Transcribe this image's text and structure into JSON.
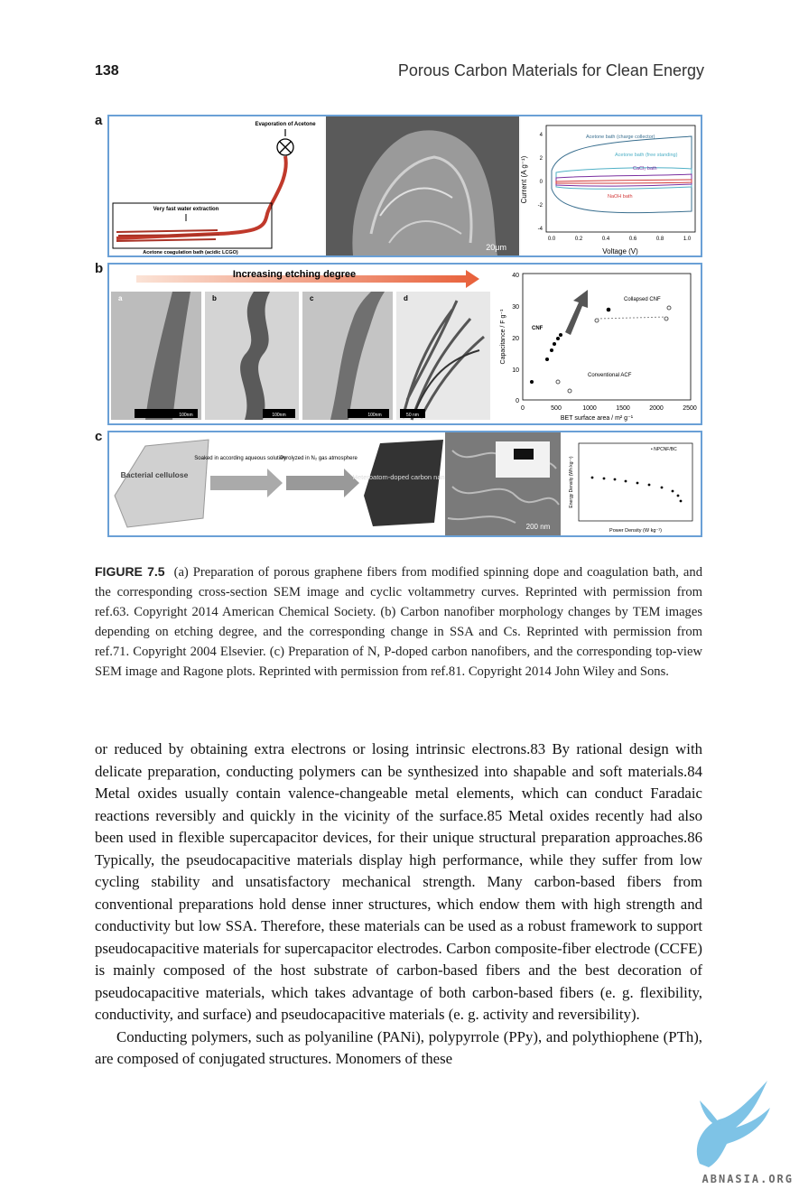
{
  "header": {
    "page_number": "138",
    "running_title": "Porous Carbon Materials for Clean Energy"
  },
  "figure": {
    "panels": [
      "a",
      "b",
      "c"
    ],
    "panel_a": {
      "schematic": {
        "top_label": "Evaporation of Acetone",
        "box_label": "Very fast water extraction",
        "bath_label": "Acetone coagulation bath (acidic LCGO)"
      },
      "sem_scale": "20μm",
      "cv_plot": {
        "ylabel": "Current (A g⁻¹)",
        "xlabel": "Voltage (V)",
        "yticks": [
          "4",
          "2",
          "0",
          "-2",
          "-4"
        ],
        "xticks": [
          "0.0",
          "0.2",
          "0.4",
          "0.6",
          "0.8",
          "1.0"
        ],
        "legend": [
          "Acetone bath (charge collector)",
          "Acetone bath (free standing)",
          "CaCl₂ bath",
          "NaOH bath"
        ],
        "colors": [
          "#3a6f8f",
          "#4fb0c6",
          "#7a2fa0",
          "#d23a3a"
        ]
      }
    },
    "panel_b": {
      "arrow_label": "Increasing etching degree",
      "tem_labels": [
        "a",
        "b",
        "c",
        "d"
      ],
      "scale_bars": [
        "100nm",
        "100nm",
        "100nm",
        "50 nm"
      ],
      "plot": {
        "ylabel": "Capacitance / F g⁻¹",
        "xlabel": "BET surface area / m² g⁻¹",
        "yticks": [
          "40",
          "30",
          "20",
          "10",
          "0"
        ],
        "xticks": [
          "0",
          "500",
          "1000",
          "1500",
          "2000",
          "2500"
        ],
        "labels": [
          "Collapsed CNF",
          "CNF",
          "Conventional ACF"
        ]
      }
    },
    "panel_c": {
      "step1": "Bacterial cellulose",
      "arrow1": "Soaked in according aqueous solution",
      "arrow2": "Pyrolyzed in N₂ gas atmosphere",
      "step2": "Heteroatom-doped carbon nanofiber",
      "sem_scale": "200 nm",
      "ragone": {
        "ylabel": "Energy Density (Wh kg⁻¹)",
        "xlabel": "Power Density (W kg⁻¹)",
        "legend": "• NPCNF/BC"
      }
    }
  },
  "caption": {
    "label": "FIGURE 7.5",
    "text": "(a) Preparation of porous graphene fibers from modified spinning dope and coagulation bath, and the corresponding cross-section SEM image and cyclic voltammetry curves. Reprinted with permission from ref.63. Copyright 2014 American Chemical Society. (b) Carbon nanofiber morphology changes by TEM images depending on etching degree, and the corresponding change in SSA and Cs. Reprinted with permission from ref.71. Copyright 2004 Elsevier. (c) Preparation of N, P-doped carbon nanofibers, and the corresponding top-view SEM image and Ragone plots. Reprinted with permission from ref.81. Copyright 2014 John Wiley and Sons."
  },
  "body": {
    "paragraph1": "or reduced by obtaining extra electrons or losing intrinsic electrons.83 By rational design with delicate preparation, conducting polymers can be synthesized into shapable and soft materials.84 Metal oxides usually contain valence-changeable metal elements, which can conduct Faradaic reactions reversibly and quickly in the vicinity of the surface.85 Metal oxides recently had also been used in flexible supercapacitor devices, for their unique structural preparation approaches.86 Typically, the pseudocapacitive materials display high performance, while they suffer from low cycling stability and unsatisfactory mechanical strength. Many carbon-based fibers from conventional preparations hold dense inner structures, which endow them with high strength and conductivity but low SSA. Therefore, these materials can be used as a robust framework to support pseudocapacitive materials for supercapacitor electrodes. Carbon composite-fiber electrode (CCFE) is mainly composed of the host substrate of carbon-based fibers and the best decoration of pseudocapacitive materials, which takes advantage of both carbon-based fibers (e. g. flexibility, conductivity, and surface) and pseudocapacitive materials (e. g. activity and reversibility).",
    "paragraph2": "Conducting polymers, such as polyaniline (PANi), polypyrrole (PPy), and polythiophene (PTh), are composed of conjugated structures. Monomers of these"
  },
  "watermark": {
    "text": "ABNASIA.ORG"
  }
}
